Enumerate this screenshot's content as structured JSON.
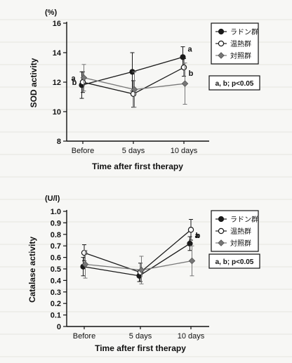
{
  "chart_data": [
    {
      "type": "line",
      "unit": "(%)",
      "ylabel": "SOD activity",
      "xlabel": "Time after first therapy",
      "categories": [
        "Before",
        "5 days",
        "10 days"
      ],
      "ylim": [
        8,
        16
      ],
      "yticks": [
        8,
        10,
        12,
        14,
        16
      ],
      "grid": false,
      "legend_position": "top-right",
      "note": "a, b; p<0.05",
      "series": [
        {
          "name": "ラドン群",
          "marker": "filled-circle",
          "color": "#1a1a1a",
          "values": [
            11.8,
            12.7,
            13.7
          ],
          "errors": [
            0.9,
            1.3,
            0.7
          ],
          "labels": [
            "a",
            "",
            "a"
          ]
        },
        {
          "name": "温熱群",
          "marker": "open-circle",
          "color": "#1a1a1a",
          "values": [
            12.0,
            11.2,
            13.0
          ],
          "errors": [
            0.7,
            0.9,
            0.6
          ],
          "labels": [
            "b",
            "",
            "b"
          ]
        },
        {
          "name": "対照群",
          "marker": "gray-diamond",
          "color": "#777777",
          "values": [
            12.3,
            11.5,
            11.9
          ],
          "errors": [
            0.9,
            1.2,
            1.4
          ],
          "labels": [
            "",
            "",
            ""
          ]
        }
      ]
    },
    {
      "type": "line",
      "unit": "(U/l)",
      "ylabel": "Catalase activity",
      "xlabel": "Time after first therapy",
      "categories": [
        "Before",
        "5 days",
        "10 days"
      ],
      "ylim": [
        0,
        1.0
      ],
      "yticks": [
        "0",
        "0.1",
        "0.2",
        "0.3",
        "0.4",
        "0.5",
        "0.6",
        "0.7",
        "0.8",
        "0.9",
        "1.0"
      ],
      "grid": false,
      "legend_position": "top-right",
      "note": "a, b; p<0.05",
      "series": [
        {
          "name": "ラドン群",
          "marker": "filled-circle",
          "color": "#1a1a1a",
          "values": [
            0.52,
            0.44,
            0.72
          ],
          "errors": [
            0.08,
            0.05,
            0.06
          ],
          "labels": [
            "",
            "",
            "a"
          ]
        },
        {
          "name": "温熱群",
          "marker": "open-circle",
          "color": "#1a1a1a",
          "values": [
            0.64,
            0.47,
            0.84
          ],
          "errors": [
            0.07,
            0.08,
            0.09
          ],
          "labels": [
            "",
            "",
            "b"
          ]
        },
        {
          "name": "対照群",
          "marker": "gray-diamond",
          "color": "#777777",
          "values": [
            0.54,
            0.49,
            0.57
          ],
          "errors": [
            0.12,
            0.12,
            0.13
          ],
          "labels": [
            "",
            "",
            ""
          ]
        }
      ]
    }
  ]
}
